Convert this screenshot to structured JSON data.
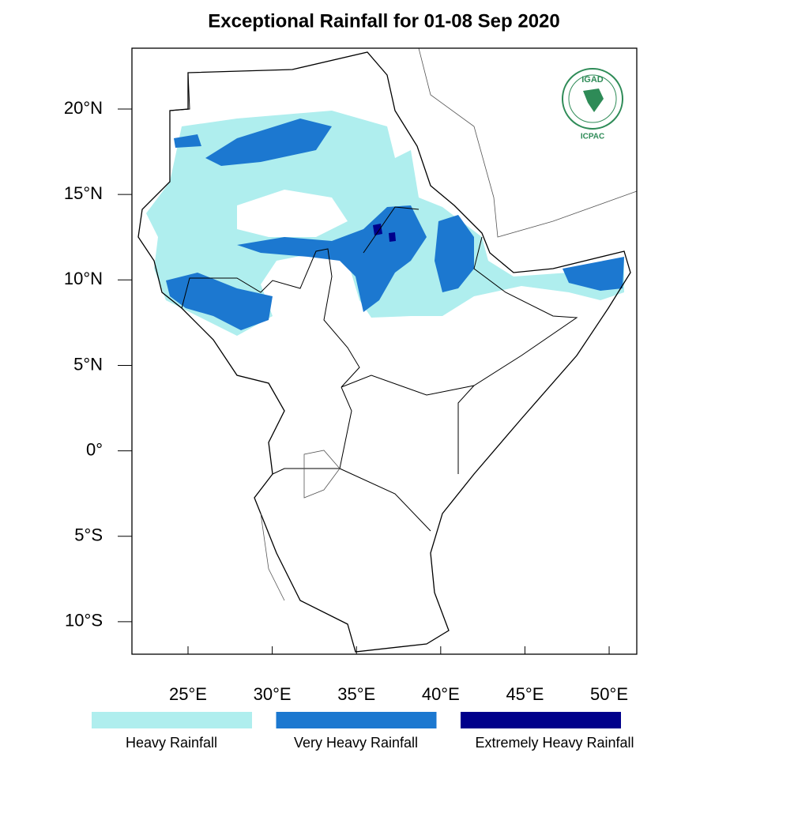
{
  "map": {
    "title": "Exceptional Rainfall for 01-08 Sep 2020",
    "xlim": [
      21.67,
      51.64
    ],
    "ylim": [
      -11.9,
      23.56
    ],
    "xticks": [
      {
        "value": 25,
        "label": "25°E"
      },
      {
        "value": 30,
        "label": "30°E"
      },
      {
        "value": 35,
        "label": "35°E"
      },
      {
        "value": 40,
        "label": "40°E"
      },
      {
        "value": 45,
        "label": "45°E"
      },
      {
        "value": 50,
        "label": "50°E"
      }
    ],
    "yticks": [
      {
        "value": 20,
        "label": "20°N"
      },
      {
        "value": 15,
        "label": "15°N"
      },
      {
        "value": 10,
        "label": "10°N"
      },
      {
        "value": 5,
        "label": "5°N"
      },
      {
        "value": 0,
        "label": "0°"
      },
      {
        "value": -5,
        "label": "5°S"
      },
      {
        "value": -10,
        "label": "10°S"
      }
    ],
    "legend": [
      {
        "label": "Heavy Rainfall",
        "color": "#afeeee"
      },
      {
        "label": "Very Heavy Rainfall",
        "color": "#1c78d0"
      },
      {
        "label": "Extremely Heavy Rainfall",
        "color": "#00008b"
      }
    ],
    "logo": {
      "name": "IGAD",
      "org": "ICPAC"
    }
  }
}
